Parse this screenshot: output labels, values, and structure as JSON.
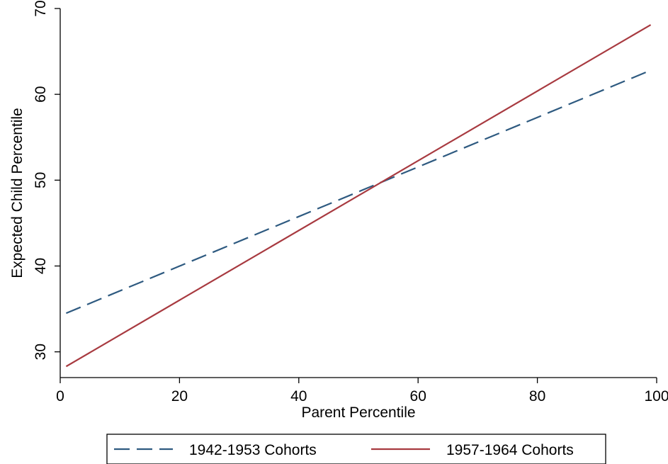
{
  "chart_data": {
    "type": "line",
    "title": "",
    "xlabel": "Parent Percentile",
    "ylabel": "Expected Child Percentile",
    "xlim": [
      0,
      100
    ],
    "ylim": [
      27,
      70
    ],
    "xticks": [
      0,
      20,
      40,
      60,
      80,
      100
    ],
    "yticks": [
      30,
      40,
      50,
      60,
      70
    ],
    "grid": false,
    "legend_position": "bottom",
    "series": [
      {
        "name": "1942-1953 Cohorts",
        "style": "dashed",
        "color": "#2e5a80",
        "x": [
          1,
          99
        ],
        "y": [
          34.5,
          62.8
        ]
      },
      {
        "name": "1957-1964 Cohorts",
        "style": "solid",
        "color": "#a83a40",
        "x": [
          1,
          99
        ],
        "y": [
          28.3,
          68.1
        ]
      }
    ]
  }
}
